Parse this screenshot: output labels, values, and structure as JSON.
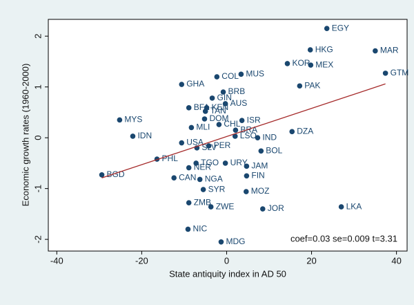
{
  "chart_data": {
    "type": "scatter",
    "x_label": "State antiquity index in AD 50",
    "y_label": "Economic growth rates (1960-2000)",
    "annotation": "coef=0.03 se=0.009 t=3.31",
    "color": "#1a476f",
    "labels": [
      "EGY",
      "HKG",
      "MAR",
      "KOR",
      "MEX",
      "GTM",
      "COL",
      "MUS",
      "GHA",
      "PAK",
      "BRB",
      "GIN",
      "AUS",
      "BFA",
      "KEN",
      "TAN",
      "ISR",
      "MYS",
      "DOM",
      "MLI",
      "CHL",
      "BRA",
      "DZA",
      "IDN",
      "IND",
      "LSO",
      "USA",
      "SLV",
      "PER",
      "BOL",
      "PHL",
      "BGD",
      "TGO",
      "NER",
      "URY",
      "JAM",
      "CAN",
      "NGA",
      "FIN",
      "SYR",
      "MOZ",
      "ZMB",
      "ZWE",
      "JOR",
      "LKA",
      "NIC",
      "MDG"
    ],
    "x": [
      23.6,
      19.7,
      35.0,
      14.3,
      19.8,
      37.4,
      -2.3,
      3.4,
      -10.6,
      17.2,
      -0.8,
      -3.4,
      -0.3,
      -8.9,
      -4.7,
      -5.0,
      3.6,
      -25.2,
      -5.2,
      -8.3,
      -1.8,
      2.1,
      15.4,
      -22.1,
      7.3,
      2.0,
      -10.6,
      -7.0,
      -4.2,
      8.1,
      -16.4,
      -29.4,
      -7.2,
      -8.9,
      -0.3,
      4.7,
      -12.4,
      -6.3,
      4.7,
      -5.5,
      4.6,
      -8.9,
      -3.7,
      8.5,
      27.0,
      -9.1,
      -1.3
    ],
    "y": [
      2.15,
      1.73,
      1.71,
      1.46,
      1.43,
      1.27,
      1.2,
      1.25,
      1.05,
      1.02,
      0.9,
      0.78,
      0.67,
      0.59,
      0.59,
      0.52,
      0.34,
      0.35,
      0.37,
      0.2,
      0.26,
      0.15,
      0.12,
      0.03,
      0.0,
      0.03,
      -0.1,
      -0.2,
      -0.16,
      -0.26,
      -0.42,
      -0.73,
      -0.5,
      -0.59,
      -0.5,
      -0.56,
      -0.79,
      -0.82,
      -0.75,
      -1.02,
      -1.06,
      -1.28,
      -1.36,
      -1.4,
      -1.36,
      -1.8,
      -2.05
    ],
    "fit": {
      "x": [
        -29.4,
        37.4
      ],
      "y": [
        -0.79,
        1.06
      ],
      "color": "#a52a2a"
    },
    "xlim": [
      -42,
      42.5
    ],
    "ylim": [
      -2.23,
      2.33
    ],
    "xticks": [
      -40,
      -20,
      0,
      20,
      40
    ],
    "yticks": [
      -2,
      -1,
      0,
      1,
      2
    ],
    "background": "#eaf2f3"
  }
}
